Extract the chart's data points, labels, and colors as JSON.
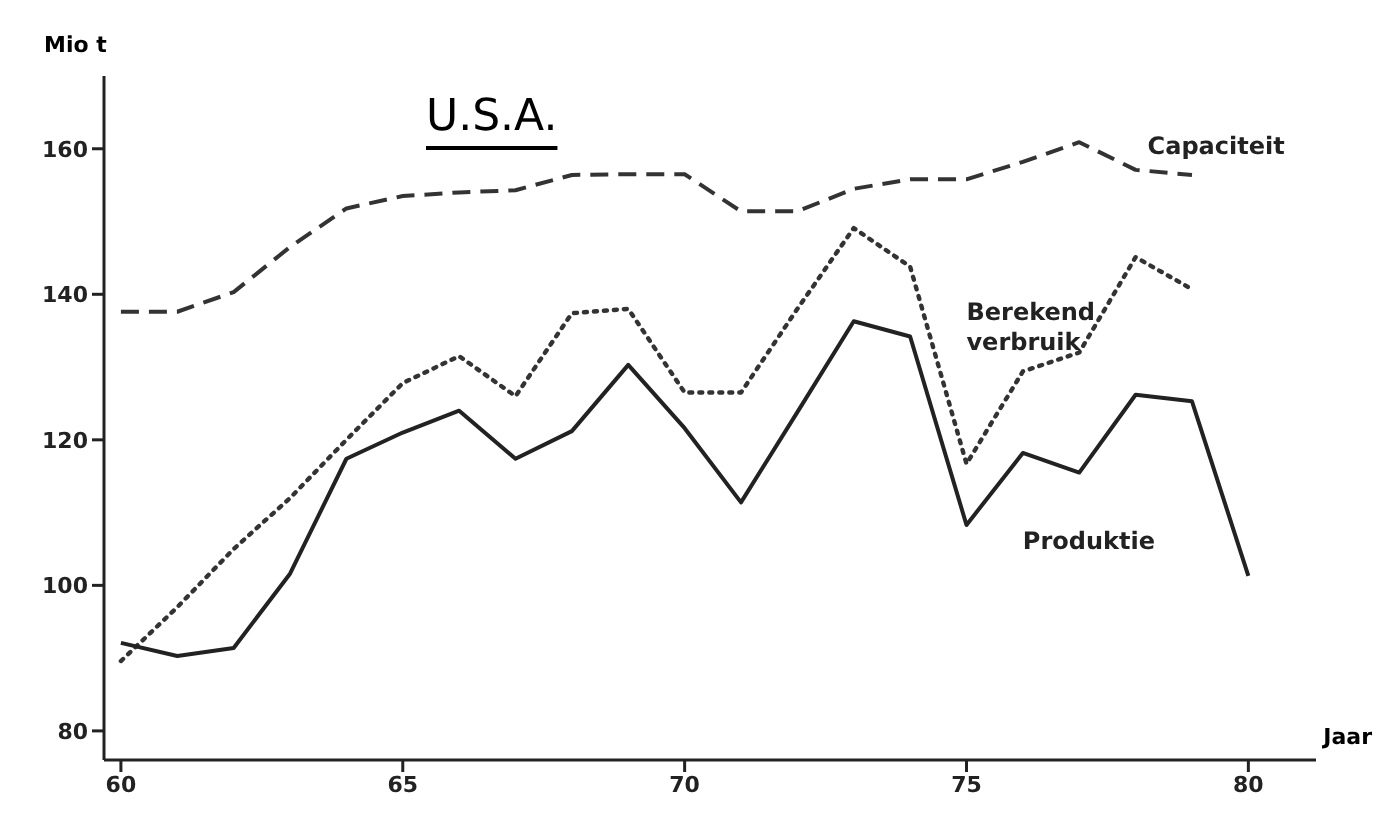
{
  "chart_data": {
    "type": "line",
    "title": "U.S.A.",
    "xlabel": "Jaar",
    "ylabel": "Mio t",
    "x": [
      60,
      61,
      62,
      63,
      64,
      65,
      66,
      67,
      68,
      69,
      70,
      71,
      72,
      73,
      74,
      75,
      76,
      77,
      78,
      79,
      80
    ],
    "series": [
      {
        "name": "Capaciteit",
        "color": "#333333",
        "line_style": "dashed",
        "values": [
          137.6,
          137.6,
          140.3,
          146.5,
          151.8,
          153.5,
          154,
          154.3,
          156.4,
          156.5,
          156.5,
          151.4,
          151.4,
          154.5,
          155.8,
          155.8,
          158.2,
          160.9,
          157.1,
          156.4,
          null
        ]
      },
      {
        "name": "Berekend verbruik",
        "color": "#333333",
        "line_style": "dotted",
        "values": [
          89.6,
          97,
          105,
          112,
          120,
          127.8,
          131.5,
          126,
          137.4,
          138,
          126.5,
          126.5,
          138,
          149.1,
          143.8,
          116.7,
          129.4,
          132,
          145.1,
          140.7,
          null
        ]
      },
      {
        "name": "Produktie",
        "color": "#222222",
        "line_style": "solid",
        "values": [
          92.1,
          90.3,
          91.4,
          101.6,
          117.4,
          121,
          124,
          117.4,
          121.2,
          130.3,
          121.6,
          111.4,
          123.8,
          136.3,
          134.2,
          108.3,
          118.2,
          115.5,
          126.2,
          125.3,
          101.3
        ]
      }
    ],
    "xlim": [
      59.7,
      81.2
    ],
    "xticks": [
      60,
      65,
      70,
      75,
      80
    ],
    "ylim": [
      76,
      170
    ],
    "yticks": [
      80,
      100,
      120,
      140,
      160
    ],
    "grid": false,
    "legend": false,
    "marker": "none"
  }
}
